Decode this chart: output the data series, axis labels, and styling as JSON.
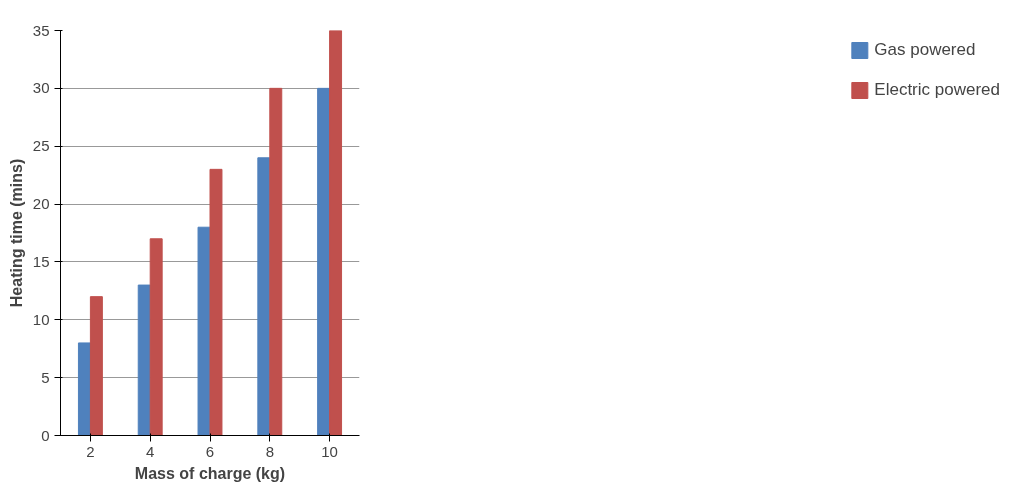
{
  "chart_data": {
    "type": "bar",
    "xlabel": "Mass of charge (kg)",
    "ylabel": "Heating time (mins)",
    "categories": [
      "2",
      "4",
      "6",
      "8",
      "10"
    ],
    "series": [
      {
        "name": "Gas powered",
        "color": "#4f81bd",
        "values": [
          8,
          13,
          18,
          24,
          30
        ]
      },
      {
        "name": "Electric powered",
        "color": "#c0504d",
        "values": [
          12,
          17,
          23,
          30,
          35
        ]
      }
    ],
    "ylim": [
      0,
      35
    ],
    "yticks": [
      0,
      5,
      10,
      15,
      20,
      25,
      30,
      35
    ],
    "grid": "y",
    "legend": "right"
  }
}
